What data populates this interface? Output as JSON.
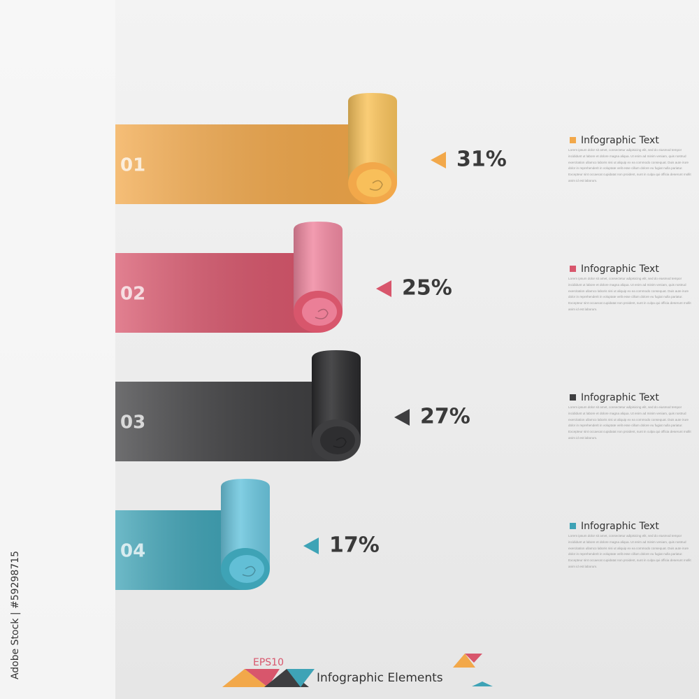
{
  "chart_data": {
    "type": "bar",
    "categories": [
      "01",
      "02",
      "03",
      "04"
    ],
    "values": [
      31,
      25,
      27,
      17
    ],
    "value_labels": [
      "31%",
      "25%",
      "27%",
      "17%"
    ],
    "colors": [
      "#f2a84a",
      "#d8566c",
      "#3e3e40",
      "#3ea3b6"
    ],
    "roll_colors": [
      "#f9c45e",
      "#f08aa2",
      "#2a2a2c",
      "#6cc6de"
    ],
    "legend": [
      {
        "title": "Infographic Text",
        "text": "Lorem ipsum dolor sit amet, consectetur adipisicing elit, sed do eiusmod tempor incididunt ut labore et dolore magna aliqua. Ut enim ad minim veniam, quis nostrud exercitation ullamco laboris nisi ut aliquip ex ea commodo consequat. Duis aute irure dolor in reprehenderit in voluptate velit esse cillum dolore eu fugiat nulla pariatur. Excepteur sint occaecat cupidatat non proident, sunt in culpa qui officia deserunt mollit anim id est laborum."
      },
      {
        "title": "Infographic Text",
        "text": "Lorem ipsum dolor sit amet, consectetur adipisicing elit, sed do eiusmod tempor incididunt ut labore et dolore magna aliqua. Ut enim ad minim veniam, quis nostrud exercitation ullamco laboris nisi ut aliquip ex ea commodo consequat. Duis aute irure dolor in reprehenderit in voluptate velit esse cillum dolore eu fugiat nulla pariatur. Excepteur sint occaecat cupidatat non proident, sunt in culpa qui officia deserunt mollit anim id est laborum."
      },
      {
        "title": "Infographic Text",
        "text": "Lorem ipsum dolor sit amet, consectetur adipisicing elit, sed do eiusmod tempor incididunt ut labore et dolore magna aliqua. Ut enim ad minim veniam, quis nostrud exercitation ullamco laboris nisi ut aliquip ex ea commodo consequat. Duis aute irure dolor in reprehenderit in voluptate velit esse cillum dolore eu fugiat nulla pariatur. Excepteur sint occaecat cupidatat non proident, sunt in culpa qui officia deserunt mollit anim id est laborum."
      },
      {
        "title": "Infographic Text",
        "text": "Lorem ipsum dolor sit amet, consectetur adipisicing elit, sed do eiusmod tempor incididunt ut labore et dolore magna aliqua. Ut enim ad minim veniam, quis nostrud exercitation ullamco laboris nisi ut aliquip ex ea commodo consequat. Duis aute irure dolor in reprehenderit in voluptate velit esse cillum dolore eu fugiat nulla pariatur. Excepteur sint occaecat cupidatat non proident, sunt in culpa qui officia deserunt mollit anim id est laborum."
      }
    ]
  },
  "footer": {
    "badge": "EPS10",
    "title": "Infographic Elements"
  },
  "watermark": "Adobe Stock | #59298715"
}
